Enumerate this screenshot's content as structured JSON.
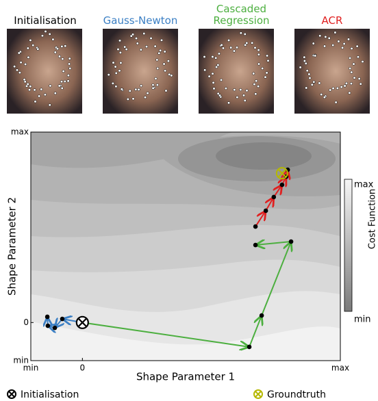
{
  "chart_data": {
    "type": "line",
    "xlabel": "Shape Parameter 1",
    "ylabel": "Shape Parameter 2",
    "xlim": [
      -0.2,
      1
    ],
    "ylim": [
      -0.2,
      1
    ],
    "xticks": [
      {
        "value": -0.2,
        "label": "min"
      },
      0,
      {
        "value": 1,
        "label": "max"
      }
    ],
    "yticks": [
      {
        "value": -0.2,
        "label": "min"
      },
      0,
      {
        "value": 1,
        "label": "max"
      }
    ],
    "initialisation": {
      "label": "Initialisation",
      "x": 0,
      "y": 0,
      "color": "#000000"
    },
    "groundtruth": {
      "label": "Groundtruth",
      "x": 0.774,
      "y": 0.784,
      "color": "#b5b800"
    },
    "series": [
      {
        "name": "Gauss-Newton",
        "color": "#3b7fc4",
        "x": [
          0,
          -0.078,
          -0.107,
          -0.134,
          -0.136
        ],
        "y": [
          0,
          0.019,
          -0.028,
          -0.017,
          0.03
        ]
      },
      {
        "name": "Cascaded Regression",
        "color": "#4caf3f",
        "x": [
          0,
          0.647,
          0.695,
          0.809,
          0.671
        ],
        "y": [
          0,
          -0.128,
          0.037,
          0.425,
          0.407
        ]
      },
      {
        "name": "ACR",
        "color": "#e02020",
        "x": [
          0.671,
          0.711,
          0.742,
          0.774,
          0.79,
          0.796
        ],
        "y": [
          0.504,
          0.587,
          0.659,
          0.723,
          0.766,
          0.802
        ]
      }
    ],
    "colorbar": {
      "label": "Cost Function",
      "high": "max",
      "low": "min"
    }
  }
}
